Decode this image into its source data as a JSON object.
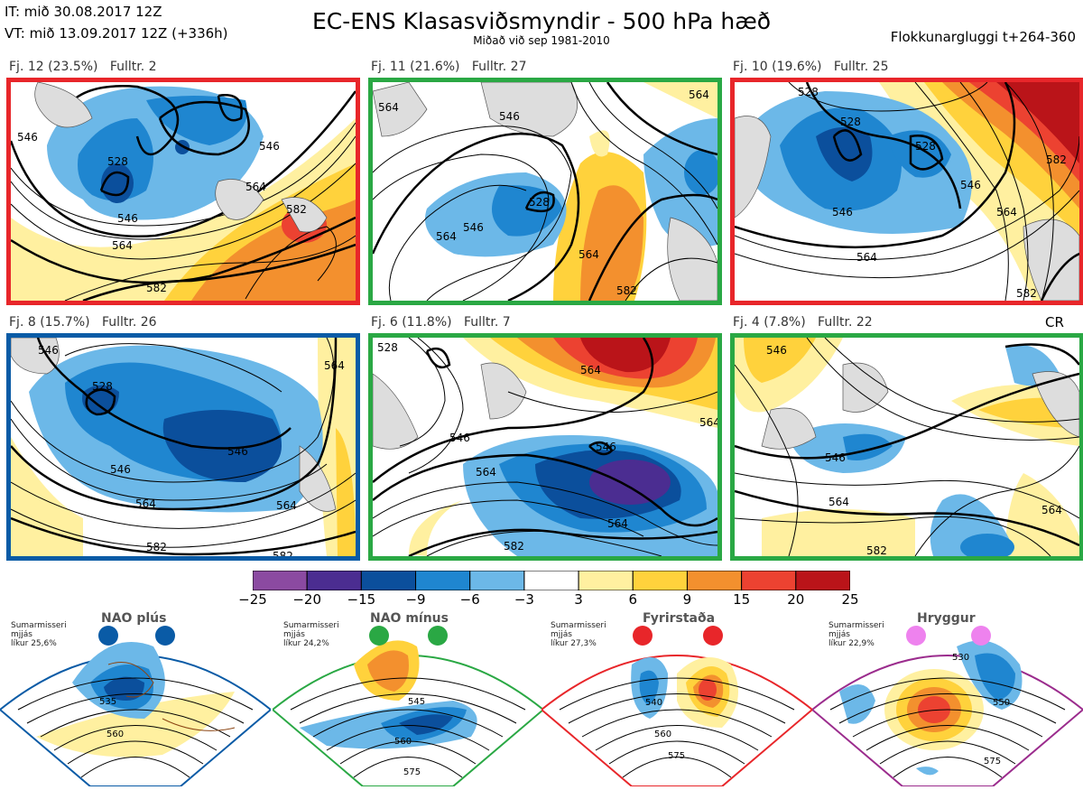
{
  "header": {
    "it": "IT: mið 30.08.2017 12Z",
    "vt": "VT: mið 13.09.2017 12Z  (+336h)",
    "title": "EC-ENS Klasasviðsmyndir - 500 hPa hæð",
    "subtitle": "Miðað við sep 1981-2010",
    "window": "Flokkunargluggi t+264-360"
  },
  "panels": [
    {
      "id": "p1",
      "label": "Fj. 12 (23.5%)   Fulltr. 2",
      "border_color": "#e8262a",
      "contours": [
        "528",
        "546",
        "546",
        "564",
        "564",
        "582",
        "582",
        "546"
      ]
    },
    {
      "id": "p2",
      "label": "Fj. 11 (21.6%)   Fulltr. 27",
      "border_color": "#2aa844",
      "contours": [
        "564",
        "546",
        "528",
        "564",
        "546",
        "564",
        "582",
        "564"
      ]
    },
    {
      "id": "p3",
      "label": "Fj. 10 (19.6%)   Fulltr. 25",
      "border_color": "#e8262a",
      "contours": [
        "528",
        "528",
        "528",
        "546",
        "546",
        "564",
        "564",
        "582",
        "582"
      ]
    },
    {
      "id": "p4",
      "label": "Fj. 8 (15.7%)   Fulltr. 26",
      "border_color": "#0a5ba6",
      "contours": [
        "546",
        "528",
        "546",
        "546",
        "564",
        "564",
        "582",
        "582",
        "564"
      ]
    },
    {
      "id": "p5",
      "label": "Fj. 6 (11.8%)   Fulltr. 7",
      "border_color": "#2aa844",
      "contours": [
        "528",
        "564",
        "546",
        "546",
        "564",
        "564",
        "582",
        "564"
      ]
    },
    {
      "id": "p6",
      "label": "Fj. 4 (7.8%)   Fulltr. 22",
      "border_color": "#2aa844",
      "contours": [
        "546",
        "546",
        "564",
        "564",
        "582"
      ]
    }
  ],
  "cr_label": "CR",
  "colorbar": {
    "ticks": [
      "−25",
      "−20",
      "−15",
      "−9",
      "−6",
      "−3",
      "3",
      "6",
      "9",
      "15",
      "20",
      "25"
    ],
    "colors": [
      "#8b4aa1",
      "#4b2d91",
      "#0b4f9c",
      "#1f86d0",
      "#6cb8e8",
      "#ffffff",
      "#fff0a0",
      "#ffd23c",
      "#f3902e",
      "#ec4231",
      "#ba1419"
    ]
  },
  "regimes": [
    {
      "name": "NAO plús",
      "note": "Sumarmisseri\nmjjás\nlíkur 25,6%",
      "color": "#0a5ba6",
      "contours": [
        "535",
        "560"
      ]
    },
    {
      "name": "NAO mínus",
      "note": "Sumarmisseri\nmjjás\nlíkur 24,2%",
      "color": "#2aa844",
      "contours": [
        "545",
        "560",
        "575"
      ]
    },
    {
      "name": "Fyrirstaða",
      "note": "Sumarmisseri\nmjjás\nlíkur 27,3%",
      "color": "#e8262a",
      "contours": [
        "540",
        "560",
        "575"
      ]
    },
    {
      "name": "Hryggur",
      "note": "Sumarmisseri\nmjjás\nlíkur 22,9%",
      "color": "#9b2c8d",
      "contours": [
        "530",
        "550",
        "575"
      ]
    }
  ]
}
